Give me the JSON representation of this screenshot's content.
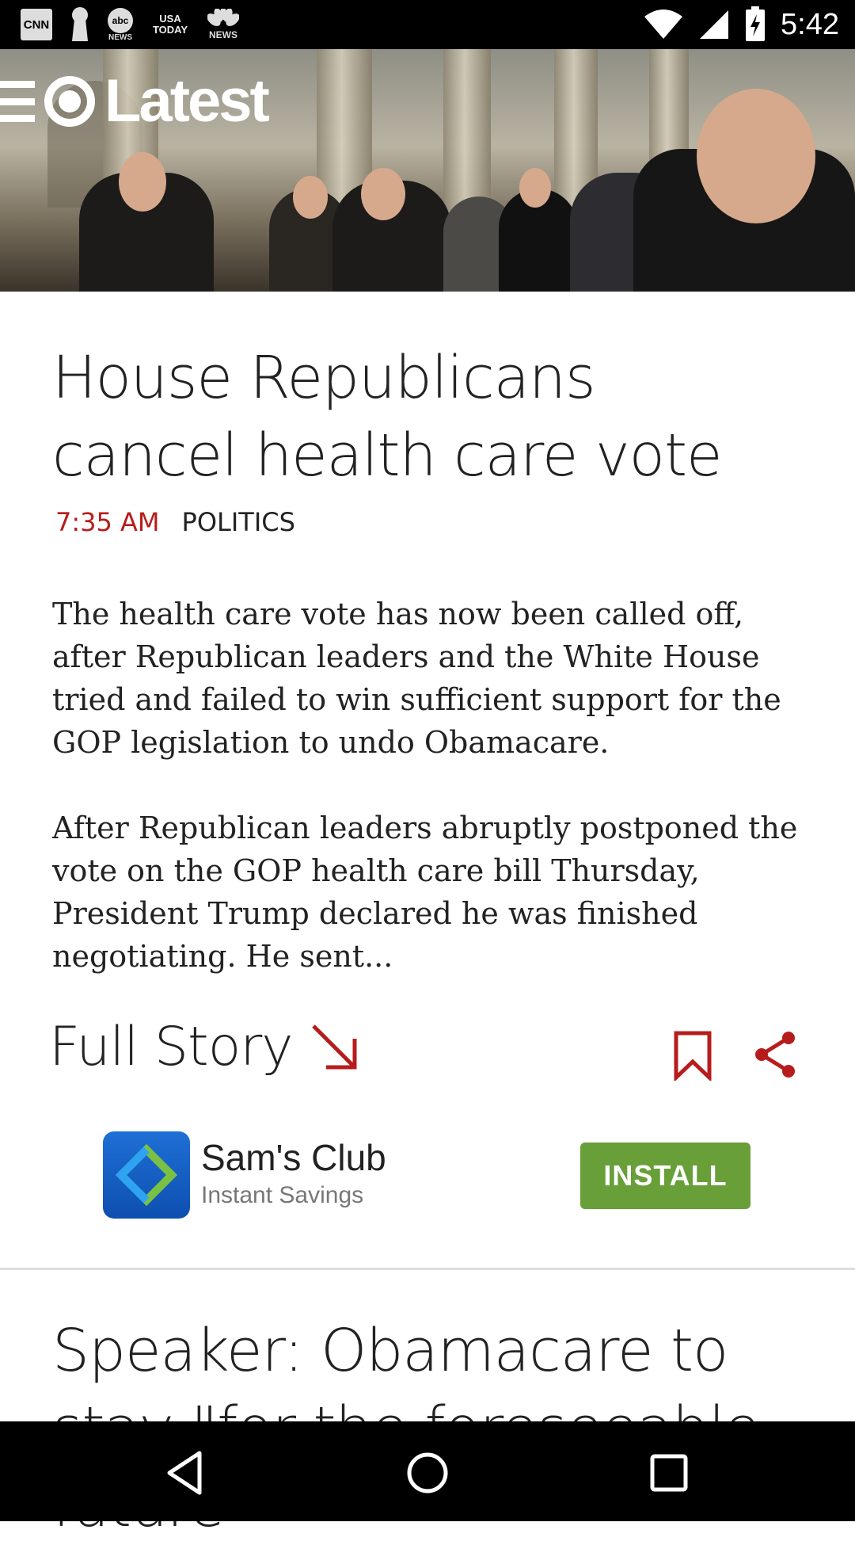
{
  "status_bar": {
    "time": "5:42",
    "notification_icons": [
      {
        "name": "cnn-icon",
        "label": "CNN"
      },
      {
        "name": "keyhole-icon",
        "label": ""
      },
      {
        "name": "abc-news-icon",
        "label": "abc NEWS"
      },
      {
        "name": "usa-today-icon",
        "label": "USA TODAY"
      },
      {
        "name": "nbc-news-icon",
        "label": "NEWS"
      }
    ],
    "system_icons": [
      "wifi-icon",
      "signal-icon",
      "battery-charging-icon"
    ]
  },
  "header": {
    "logo_text": "Latest",
    "menu_icon": "menu-icon"
  },
  "article": {
    "headline": "House Republicans cancel health care vote",
    "time": "7:35 AM",
    "category": "POLITICS",
    "paragraphs": [
      "The health care vote has now been called off, after Republican leaders and the White House tried and failed to win sufficient support for the GOP legislation to undo Obamacare.",
      "After Republican leaders abruptly postponed the vote on the GOP health care bill Thursday, President Trump declared he was finished negotiating. He sent..."
    ],
    "full_story_label": "Full Story"
  },
  "ad": {
    "title": "Sam's Club",
    "subtitle": "Instant Savings",
    "button_label": "INSTALL"
  },
  "next_article": {
    "headline": "Speaker: Obamacare to stay \"for the foreseeable future\""
  },
  "colors": {
    "accent": "#b71c1c",
    "install": "#689f38",
    "ad_logo": "#1f6fd6"
  }
}
